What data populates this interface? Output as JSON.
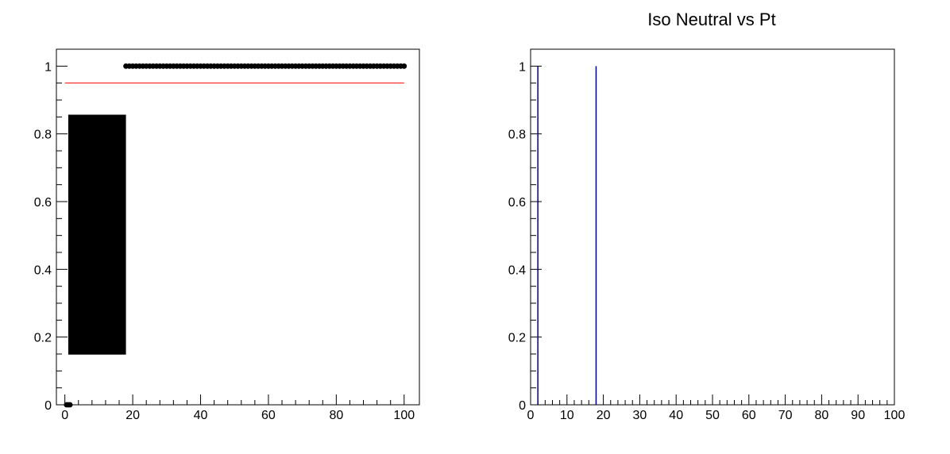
{
  "chart_data": [
    {
      "type": "scatter",
      "title": "",
      "xlabel": "",
      "ylabel": "",
      "xlim": [
        -2.5,
        104.5
      ],
      "ylim": [
        0,
        1.05
      ],
      "grid": false,
      "x_ticks": [
        0,
        20,
        40,
        60,
        80,
        100
      ],
      "x_tick_labels": [
        "0",
        "20",
        "40",
        "60",
        "80",
        "100"
      ],
      "y_ticks": [
        0,
        0.2,
        0.4,
        0.6,
        0.8,
        1
      ],
      "y_tick_labels": [
        "0",
        "0.2",
        "0.4",
        "0.6",
        "0.8",
        "1"
      ],
      "colors": {
        "points": "#000000",
        "reference_line": "#ff0000",
        "error_band": "#000000"
      },
      "series": [
        {
          "points": [
            {
              "x": 0.5,
              "y": 0
            },
            {
              "x": 1,
              "y": 0
            },
            {
              "x": 1.5,
              "y": 0
            },
            {
              "x": 2,
              "y": 0.5
            },
            {
              "x": 3,
              "y": 0.5
            },
            {
              "x": 4,
              "y": 0.5
            },
            {
              "x": 5,
              "y": 0.5
            },
            {
              "x": 6,
              "y": 0.5
            },
            {
              "x": 7,
              "y": 0.5
            },
            {
              "x": 8,
              "y": 0.5
            },
            {
              "x": 9,
              "y": 0.5
            },
            {
              "x": 10,
              "y": 0.5
            },
            {
              "x": 11,
              "y": 0.5
            },
            {
              "x": 12,
              "y": 0.5
            },
            {
              "x": 13,
              "y": 0.5
            },
            {
              "x": 14,
              "y": 0.5
            },
            {
              "x": 15,
              "y": 0.5
            },
            {
              "x": 16,
              "y": 0.5
            },
            {
              "x": 17,
              "y": 0.5
            },
            {
              "x": 18,
              "y": 1
            },
            {
              "x": 19,
              "y": 1
            },
            {
              "x": 20,
              "y": 1
            },
            {
              "x": 21,
              "y": 1
            },
            {
              "x": 22,
              "y": 1
            },
            {
              "x": 23,
              "y": 1
            },
            {
              "x": 24,
              "y": 1
            },
            {
              "x": 25,
              "y": 1
            },
            {
              "x": 26,
              "y": 1
            },
            {
              "x": 27,
              "y": 1
            },
            {
              "x": 28,
              "y": 1
            },
            {
              "x": 29,
              "y": 1
            },
            {
              "x": 30,
              "y": 1
            },
            {
              "x": 31,
              "y": 1
            },
            {
              "x": 32,
              "y": 1
            },
            {
              "x": 33,
              "y": 1
            },
            {
              "x": 34,
              "y": 1
            },
            {
              "x": 35,
              "y": 1
            },
            {
              "x": 36,
              "y": 1
            },
            {
              "x": 37,
              "y": 1
            },
            {
              "x": 38,
              "y": 1
            },
            {
              "x": 39,
              "y": 1
            },
            {
              "x": 40,
              "y": 1
            },
            {
              "x": 41,
              "y": 1
            },
            {
              "x": 42,
              "y": 1
            },
            {
              "x": 43,
              "y": 1
            },
            {
              "x": 44,
              "y": 1
            },
            {
              "x": 45,
              "y": 1
            },
            {
              "x": 46,
              "y": 1
            },
            {
              "x": 47,
              "y": 1
            },
            {
              "x": 48,
              "y": 1
            },
            {
              "x": 49,
              "y": 1
            },
            {
              "x": 50,
              "y": 1
            },
            {
              "x": 51,
              "y": 1
            },
            {
              "x": 52,
              "y": 1
            },
            {
              "x": 53,
              "y": 1
            },
            {
              "x": 54,
              "y": 1
            },
            {
              "x": 55,
              "y": 1
            },
            {
              "x": 56,
              "y": 1
            },
            {
              "x": 57,
              "y": 1
            },
            {
              "x": 58,
              "y": 1
            },
            {
              "x": 59,
              "y": 1
            },
            {
              "x": 60,
              "y": 1
            },
            {
              "x": 61,
              "y": 1
            },
            {
              "x": 62,
              "y": 1
            },
            {
              "x": 63,
              "y": 1
            },
            {
              "x": 64,
              "y": 1
            },
            {
              "x": 65,
              "y": 1
            },
            {
              "x": 66,
              "y": 1
            },
            {
              "x": 67,
              "y": 1
            },
            {
              "x": 68,
              "y": 1
            },
            {
              "x": 69,
              "y": 1
            },
            {
              "x": 70,
              "y": 1
            },
            {
              "x": 71,
              "y": 1
            },
            {
              "x": 72,
              "y": 1
            },
            {
              "x": 73,
              "y": 1
            },
            {
              "x": 74,
              "y": 1
            },
            {
              "x": 75,
              "y": 1
            },
            {
              "x": 76,
              "y": 1
            },
            {
              "x": 77,
              "y": 1
            },
            {
              "x": 78,
              "y": 1
            },
            {
              "x": 79,
              "y": 1
            },
            {
              "x": 80,
              "y": 1
            },
            {
              "x": 81,
              "y": 1
            },
            {
              "x": 82,
              "y": 1
            },
            {
              "x": 83,
              "y": 1
            },
            {
              "x": 84,
              "y": 1
            },
            {
              "x": 85,
              "y": 1
            },
            {
              "x": 86,
              "y": 1
            },
            {
              "x": 87,
              "y": 1
            },
            {
              "x": 88,
              "y": 1
            },
            {
              "x": 89,
              "y": 1
            },
            {
              "x": 90,
              "y": 1
            },
            {
              "x": 91,
              "y": 1
            },
            {
              "x": 92,
              "y": 1
            },
            {
              "x": 93,
              "y": 1
            },
            {
              "x": 94,
              "y": 1
            },
            {
              "x": 95,
              "y": 1
            },
            {
              "x": 96,
              "y": 1
            },
            {
              "x": 97,
              "y": 1
            },
            {
              "x": 98,
              "y": 1
            },
            {
              "x": 99,
              "y": 1
            },
            {
              "x": 100,
              "y": 1
            }
          ]
        }
      ],
      "error_band": {
        "x_from": 1,
        "x_to": 18,
        "y_low": 0.15,
        "y_high": 0.855
      },
      "reference_line": {
        "y": 0.95,
        "x_from": 0,
        "x_to": 100
      }
    },
    {
      "type": "bar",
      "title": "Iso Neutral vs Pt",
      "xlabel": "",
      "ylabel": "",
      "xlim": [
        0,
        100
      ],
      "ylim": [
        0,
        1.05
      ],
      "grid": false,
      "x_ticks": [
        0,
        10,
        20,
        30,
        40,
        50,
        60,
        70,
        80,
        90,
        100
      ],
      "x_tick_labels": [
        "0",
        "10",
        "20",
        "30",
        "40",
        "50",
        "60",
        "70",
        "80",
        "90",
        "100"
      ],
      "y_ticks": [
        0,
        0.2,
        0.4,
        0.6,
        0.8,
        1
      ],
      "y_tick_labels": [
        "0",
        "0.2",
        "0.4",
        "0.6",
        "0.8",
        "1"
      ],
      "colors": {
        "bars": "#00008b"
      },
      "bars": [
        {
          "x": 2,
          "value": 1
        },
        {
          "x": 18,
          "value": 1
        }
      ]
    }
  ]
}
